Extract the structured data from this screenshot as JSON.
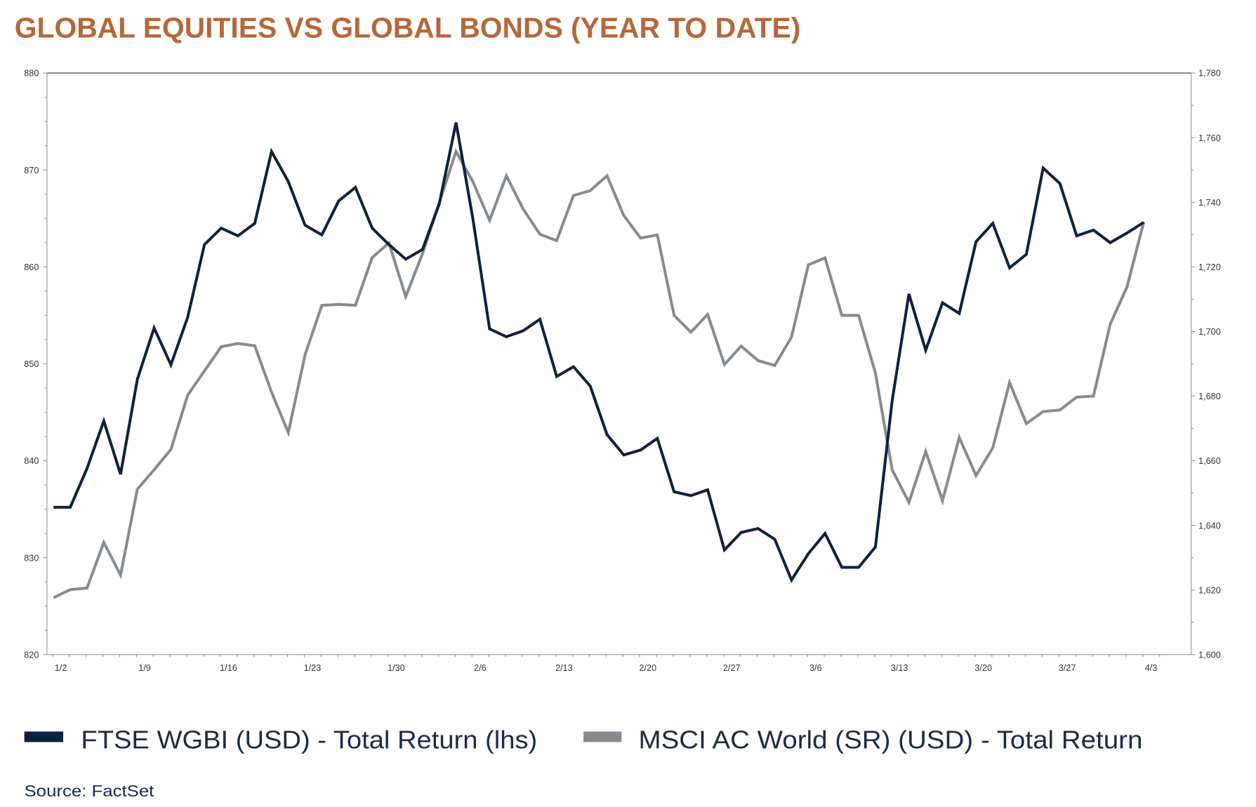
{
  "chart_data": {
    "type": "line",
    "title": "GLOBAL EQUITIES VS GLOBAL BONDS (YEAR TO DATE)",
    "x_tick_labels": [
      "1/2",
      "1/9",
      "1/16",
      "1/23",
      "1/30",
      "2/6",
      "2/13",
      "2/20",
      "2/27",
      "3/6",
      "3/13",
      "3/20",
      "3/27",
      "4/3"
    ],
    "y_left": {
      "range": [
        820,
        880
      ],
      "ticks": [
        "820",
        "830",
        "840",
        "850",
        "860",
        "870",
        "880"
      ]
    },
    "y_right": {
      "range": [
        1600,
        1780
      ],
      "ticks": [
        "1,600",
        "1,620",
        "1,640",
        "1,660",
        "1,680",
        "1,700",
        "1,720",
        "1,740",
        "1,760",
        "1,780"
      ]
    },
    "grid": false,
    "legend_position": "bottom",
    "series": [
      {
        "name": "FTSE WGBI (USD) - Total Return (lhs)",
        "axis": "left",
        "color": "#0f2140",
        "values": [
          835.2,
          835.2,
          839.2,
          844.1,
          838.6,
          848.4,
          853.7,
          849.9,
          854.8,
          862.3,
          864.0,
          863.2,
          864.5,
          871.9,
          868.8,
          864.3,
          863.3,
          866.8,
          868.2,
          864.0,
          862.3,
          860.8,
          861.8,
          866.5,
          874.9,
          865.0,
          853.6,
          852.8,
          853.4,
          854.6,
          848.7,
          849.7,
          847.7,
          842.7,
          840.6,
          841.1,
          842.3,
          836.8,
          836.4,
          837.0,
          830.8,
          832.6,
          833.0,
          831.9,
          827.7,
          830.4,
          832.5,
          829.0,
          829.0,
          831.1,
          846.2,
          857.2,
          851.4,
          856.3,
          855.2,
          862.6,
          864.5,
          859.9,
          861.3,
          870.2,
          868.6,
          863.2,
          863.8,
          862.5,
          863.5,
          864.6
        ]
      },
      {
        "name": "MSCI AC World (SR) (USD) - Total Return",
        "axis": "right",
        "color": "#858b90",
        "values": [
          1617.6,
          1620.1,
          1620.6,
          1634.7,
          1624.6,
          1651.2,
          1657.2,
          1663.5,
          1680.3,
          1687.8,
          1695.3,
          1696.3,
          1695.6,
          1681.2,
          1668.7,
          1692.8,
          1708.1,
          1708.4,
          1708.1,
          1722.9,
          1727.4,
          1710.8,
          1724.1,
          1739.9,
          1755.7,
          1746.4,
          1734.4,
          1748.2,
          1737.9,
          1730.1,
          1728.1,
          1742.1,
          1743.6,
          1748.2,
          1735.9,
          1728.9,
          1729.9,
          1705.0,
          1699.8,
          1705.3,
          1689.8,
          1695.5,
          1691.0,
          1689.5,
          1698.3,
          1720.6,
          1722.8,
          1705.0,
          1705.0,
          1687.2,
          1657.2,
          1647.1,
          1662.9,
          1647.6,
          1667.2,
          1655.4,
          1664.0,
          1684.2,
          1671.5,
          1675.2,
          1675.7,
          1679.7,
          1680.0,
          1702.3,
          1713.8,
          1733.9
        ]
      }
    ],
    "source": "Source: FactSet"
  }
}
